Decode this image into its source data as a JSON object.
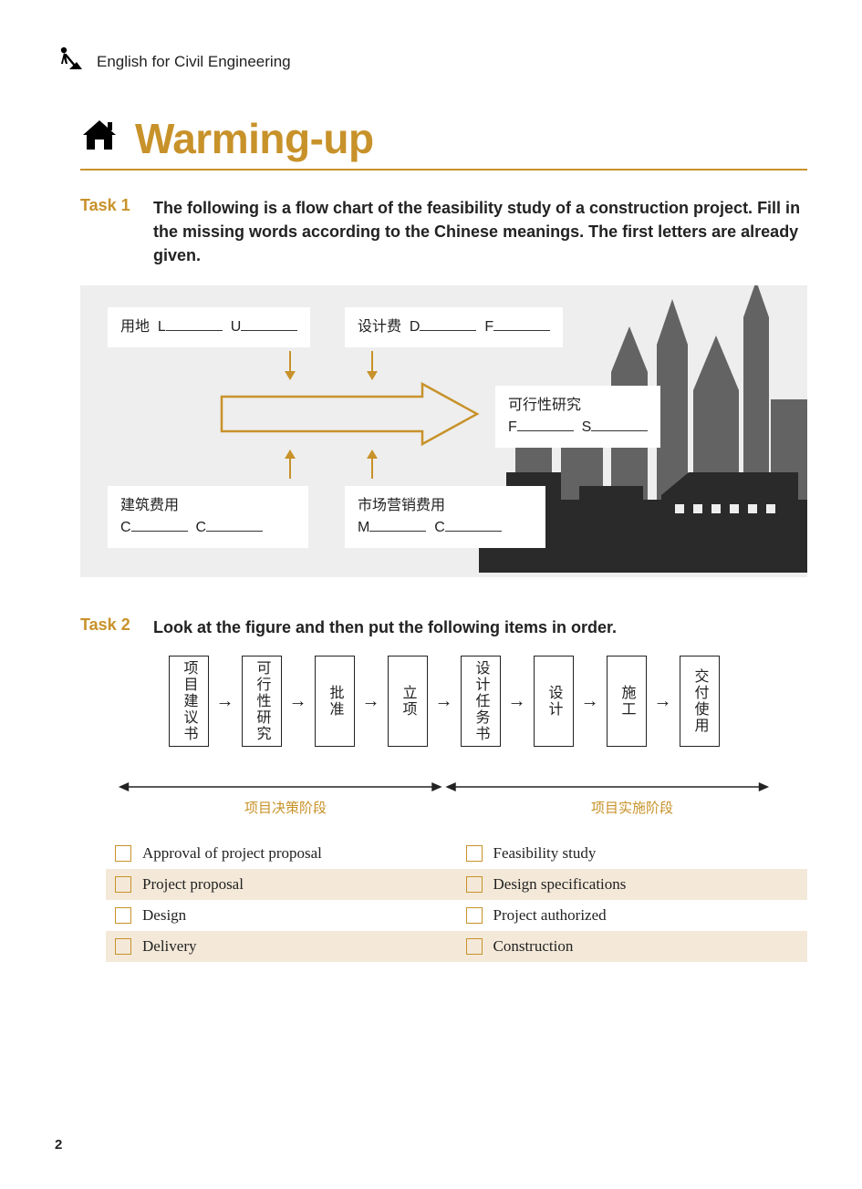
{
  "accent": "#c8922a",
  "header": {
    "text": "English for Civil Engineering"
  },
  "section": {
    "title": "Warming-up"
  },
  "task1": {
    "label": "Task 1",
    "text": "The following is a flow chart of the feasibility study of a construction project. Fill in the missing words according to the Chinese meanings. The first letters are already given.",
    "cards": {
      "land_use": {
        "cn": "用地",
        "letters": [
          "L",
          "U"
        ]
      },
      "design_fee": {
        "cn": "设计费",
        "letters": [
          "D",
          "F"
        ]
      },
      "feasibility": {
        "cn": "可行性研究",
        "letters": [
          "F",
          "S"
        ]
      },
      "construction": {
        "cn": "建筑费用",
        "letters": [
          "C",
          "C"
        ]
      },
      "marketing": {
        "cn": "市场营销费用",
        "letters": [
          "M",
          "C"
        ]
      }
    }
  },
  "task2": {
    "label": "Task 2",
    "text": "Look at the figure and then put the following items in order.",
    "flow_boxes": [
      "项目建议书",
      "可行性研究",
      "批准",
      "立项",
      "设计任务书",
      "设计",
      "施工",
      "交付使用"
    ],
    "phase_labels": {
      "left": "项目决策阶段",
      "right": "项目实施阶段"
    },
    "options": [
      [
        "Approval of project proposal",
        "Feasibility study"
      ],
      [
        "Project proposal",
        "Design specifications"
      ],
      [
        "Design",
        "Project authorized"
      ],
      [
        "Delivery",
        "Construction"
      ]
    ],
    "row_stripe": "#f4e9d9",
    "checkbox_border": "#c8922a"
  },
  "page_number": "2"
}
